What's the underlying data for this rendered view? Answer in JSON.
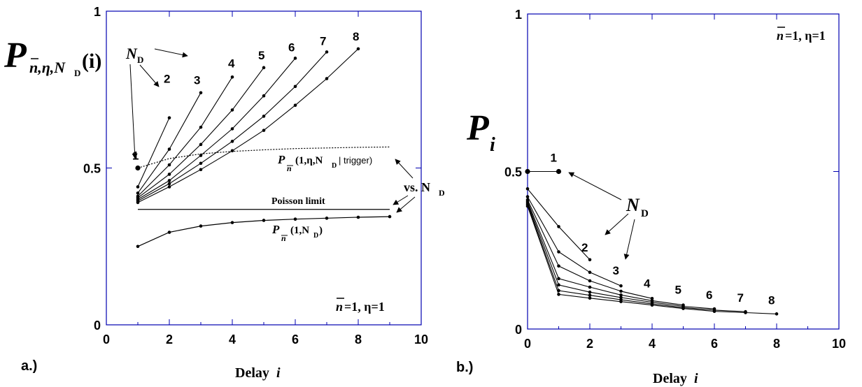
{
  "chart_data": [
    {
      "panel_label": "a.)",
      "type": "line",
      "xlabel": "Delay",
      "xlabel_var": "i",
      "ylabel": "P",
      "ylabel_sub": "n,η,N",
      "ylabel_subsub": "D",
      "ylabel_arg": "(i)",
      "xlim": [
        0,
        10
      ],
      "ylim": [
        0,
        1
      ],
      "xticks": [
        "0",
        "2",
        "4",
        "6",
        "8",
        "10"
      ],
      "yticks": [
        "0",
        "0.5",
        "1"
      ],
      "series": [
        {
          "name": "1",
          "x": [
            1
          ],
          "y": [
            0.5
          ]
        },
        {
          "name": "2",
          "x": [
            1,
            2
          ],
          "y": [
            0.44,
            0.66
          ]
        },
        {
          "name": "3",
          "x": [
            1,
            2,
            3
          ],
          "y": [
            0.42,
            0.56,
            0.74
          ]
        },
        {
          "name": "4",
          "x": [
            1,
            2,
            3,
            4
          ],
          "y": [
            0.41,
            0.51,
            0.63,
            0.79
          ]
        },
        {
          "name": "5",
          "x": [
            1,
            2,
            3,
            4,
            5
          ],
          "y": [
            0.405,
            0.48,
            0.575,
            0.685,
            0.82
          ]
        },
        {
          "name": "6",
          "x": [
            1,
            2,
            3,
            4,
            5,
            6
          ],
          "y": [
            0.4,
            0.46,
            0.54,
            0.625,
            0.73,
            0.85
          ]
        },
        {
          "name": "7",
          "x": [
            1,
            2,
            3,
            4,
            5,
            6,
            7
          ],
          "y": [
            0.395,
            0.45,
            0.515,
            0.585,
            0.665,
            0.76,
            0.87
          ]
        },
        {
          "name": "8",
          "x": [
            1,
            2,
            3,
            4,
            5,
            6,
            7,
            8
          ],
          "y": [
            0.39,
            0.44,
            0.495,
            0.555,
            0.62,
            0.7,
            0.785,
            0.88
          ]
        }
      ],
      "trigger_curve": {
        "x": [
          1,
          2,
          3,
          4,
          5,
          6,
          7,
          8,
          9
        ],
        "y": [
          0.5,
          0.53,
          0.545,
          0.553,
          0.558,
          0.562,
          0.564,
          0.566,
          0.567
        ]
      },
      "marginal_curve": {
        "x": [
          1,
          2,
          3,
          4,
          5,
          6,
          7,
          8,
          9
        ],
        "y": [
          0.25,
          0.295,
          0.315,
          0.326,
          0.333,
          0.337,
          0.34,
          0.343,
          0.345
        ]
      },
      "poisson_limit": {
        "y": 0.368,
        "x_range": [
          1,
          9
        ]
      },
      "annotations": {
        "nd_label": "N",
        "nd_sub": "D",
        "poisson": "Poisson limit",
        "trigger_label_p": "P",
        "trigger_label_arg": "(1,η,N",
        "trigger_label_argsub": "D",
        "trigger_label_cond": "| trigger)",
        "marginal_label_p": "P",
        "marginal_label_arg": "(1,N",
        "marginal_label_argsub": "D",
        "marginal_label_close": ")",
        "vs_label": "vs. N",
        "vs_sub": "D",
        "param_n": "n",
        "param_rest": "=1, η=1"
      }
    },
    {
      "panel_label": "b.)",
      "type": "line",
      "xlabel": "Delay",
      "xlabel_var": "i",
      "ylabel": "P",
      "ylabel_sub": "i",
      "xlim": [
        0,
        10
      ],
      "ylim": [
        0,
        1
      ],
      "xticks": [
        "0",
        "2",
        "4",
        "6",
        "8",
        "10"
      ],
      "yticks": [
        "0",
        "0.5",
        "1"
      ],
      "series": [
        {
          "name": "1",
          "x": [
            0,
            1
          ],
          "y": [
            0.5,
            0.5
          ]
        },
        {
          "name": "2",
          "x": [
            0,
            1,
            2
          ],
          "y": [
            0.445,
            0.325,
            0.22
          ]
        },
        {
          "name": "3",
          "x": [
            0,
            1,
            2,
            3
          ],
          "y": [
            0.42,
            0.245,
            0.18,
            0.137
          ]
        },
        {
          "name": "4",
          "x": [
            0,
            1,
            2,
            3,
            4
          ],
          "y": [
            0.41,
            0.2,
            0.153,
            0.12,
            0.097
          ]
        },
        {
          "name": "5",
          "x": [
            0,
            1,
            2,
            3,
            4,
            5
          ],
          "y": [
            0.405,
            0.16,
            0.133,
            0.108,
            0.09,
            0.076
          ]
        },
        {
          "name": "6",
          "x": [
            0,
            1,
            2,
            3,
            4,
            5,
            6
          ],
          "y": [
            0.4,
            0.14,
            0.117,
            0.1,
            0.085,
            0.072,
            0.064
          ]
        },
        {
          "name": "7",
          "x": [
            0,
            1,
            2,
            3,
            4,
            5,
            6,
            7
          ],
          "y": [
            0.395,
            0.122,
            0.107,
            0.093,
            0.08,
            0.068,
            0.06,
            0.055
          ]
        },
        {
          "name": "8",
          "x": [
            0,
            1,
            2,
            3,
            4,
            5,
            6,
            7,
            8
          ],
          "y": [
            0.39,
            0.11,
            0.098,
            0.087,
            0.076,
            0.065,
            0.056,
            0.052,
            0.048
          ]
        }
      ],
      "annotations": {
        "nd_label": "N",
        "nd_sub": "D",
        "param_n": "n",
        "param_rest": "=1, η=1"
      }
    }
  ]
}
